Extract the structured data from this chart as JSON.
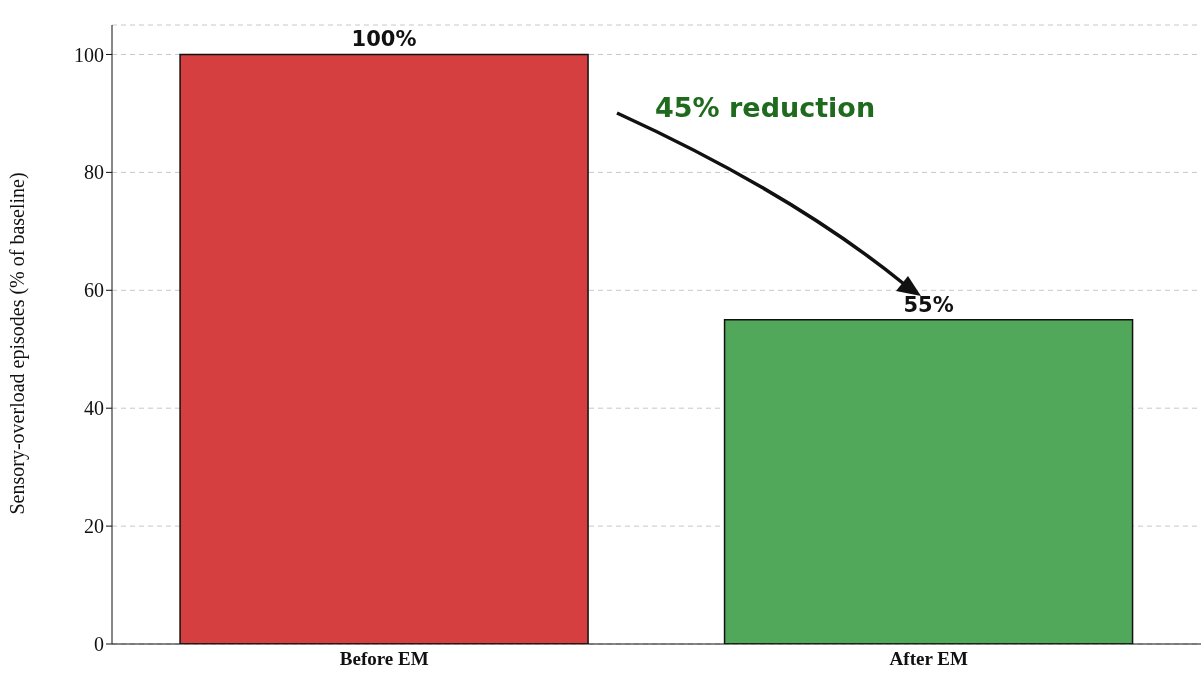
{
  "chart_data": {
    "type": "bar",
    "ylabel": "Sensory-overload episodes (% of baseline)",
    "categories": [
      "Before EM",
      "After EM"
    ],
    "values": [
      100,
      55
    ],
    "colors": [
      "#d63f3f",
      "#52a85a"
    ],
    "value_labels": [
      "100%",
      "55%"
    ],
    "ylim": [
      0,
      105
    ],
    "yticks": [
      0,
      20,
      40,
      60,
      80,
      100
    ],
    "grid": "y",
    "annotations": [
      "45% reduction"
    ]
  }
}
